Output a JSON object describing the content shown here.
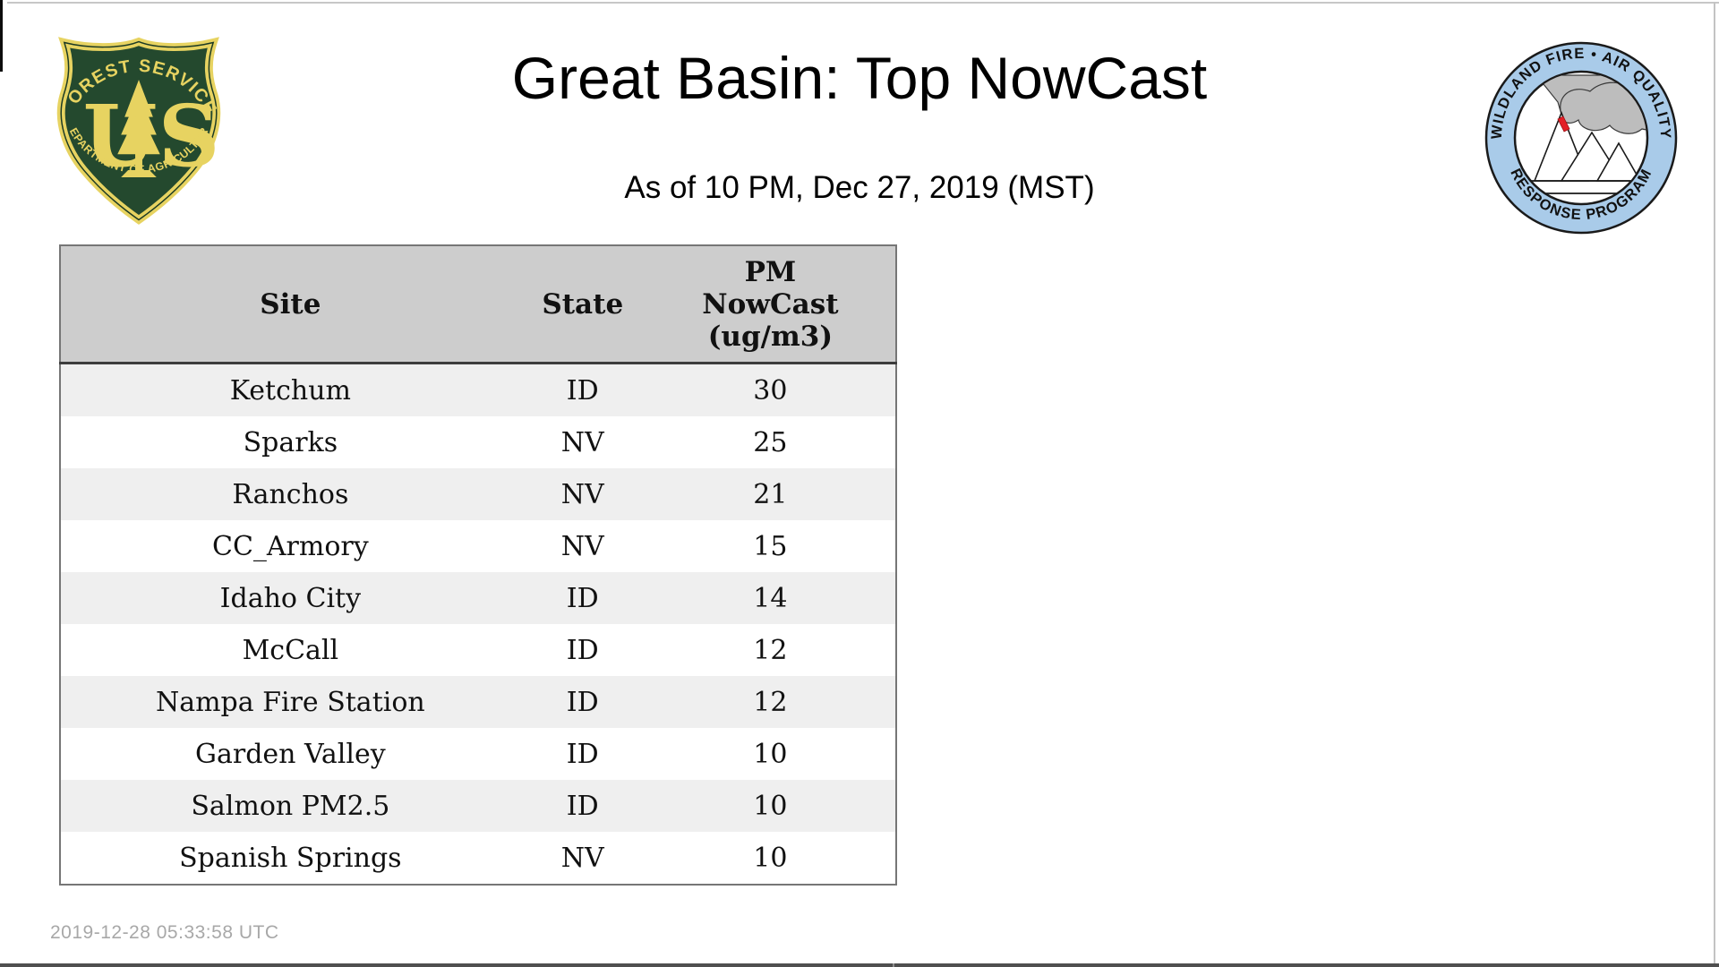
{
  "header": {
    "title": "Great Basin: Top NowCast",
    "subtitle": "As of 10 PM, Dec 27, 2019 (MST)"
  },
  "logos": {
    "usfs": {
      "arc_top": "FOREST SERVICE",
      "letter_u": "U",
      "letter_s": "S",
      "arc_bottom": "DEPARTMENT OF AGRICULTURE",
      "green": "#24492e",
      "gold": "#e7d361"
    },
    "wfaqrp": {
      "arc_top": "WILDLAND FIRE • AIR QUALITY",
      "arc_bottom": "RESPONSE PROGRAM",
      "ring_color": "#a9cbe9",
      "smoke_color": "#bdbdbd",
      "flame_color": "#e31f26"
    }
  },
  "table": {
    "columns": [
      "Site",
      "State",
      "PM NowCast (ug/m3)"
    ],
    "pm_lines": [
      "PM",
      "NowCast",
      "(ug/m3)"
    ],
    "header_bg": "#cdcdcd",
    "stripe_bg": "#efefef",
    "rows": [
      [
        "Ketchum",
        "ID",
        "30"
      ],
      [
        "Sparks",
        "NV",
        "25"
      ],
      [
        "Ranchos",
        "NV",
        "21"
      ],
      [
        "CC_Armory",
        "NV",
        "15"
      ],
      [
        "Idaho City",
        "ID",
        "14"
      ],
      [
        "McCall",
        "ID",
        "12"
      ],
      [
        "Nampa Fire Station",
        "ID",
        "12"
      ],
      [
        "Garden Valley",
        "ID",
        "10"
      ],
      [
        "Salmon PM2.5",
        "ID",
        "10"
      ],
      [
        "Spanish Springs",
        "NV",
        "10"
      ]
    ]
  },
  "footer": {
    "timestamp": "2019-12-28 05:33:58 UTC"
  }
}
